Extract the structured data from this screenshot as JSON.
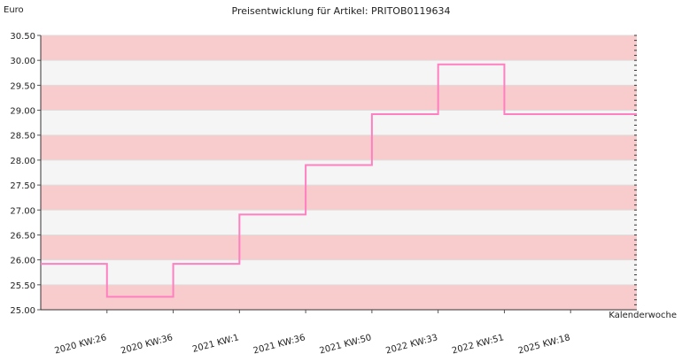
{
  "chart_data": {
    "type": "line",
    "step": true,
    "title": "Preisentwicklung für Artikel: PRITOB0119634",
    "ylabel": "Euro",
    "xlabel": "Kalenderwoche",
    "categories": [
      "2020 KW:26",
      "2020 KW:36",
      "2021 KW:1",
      "2021 KW:36",
      "2021 KW:50",
      "2022 KW:33",
      "2022 KW:51",
      "2025 KW:18"
    ],
    "series": [
      {
        "values": [
          25.92,
          25.26,
          25.92,
          26.91,
          27.9,
          28.92,
          29.92,
          28.92
        ]
      }
    ],
    "ylim": [
      25.0,
      30.5
    ],
    "yticks": [
      "25.00",
      "25.50",
      "26.00",
      "26.50",
      "27.00",
      "27.50",
      "28.00",
      "28.50",
      "29.00",
      "29.50",
      "30.00",
      "30.50"
    ],
    "grid": true,
    "band_colors": [
      "#f8cccc",
      "#f5f5f5"
    ],
    "line_color": "#ff7fc0"
  }
}
